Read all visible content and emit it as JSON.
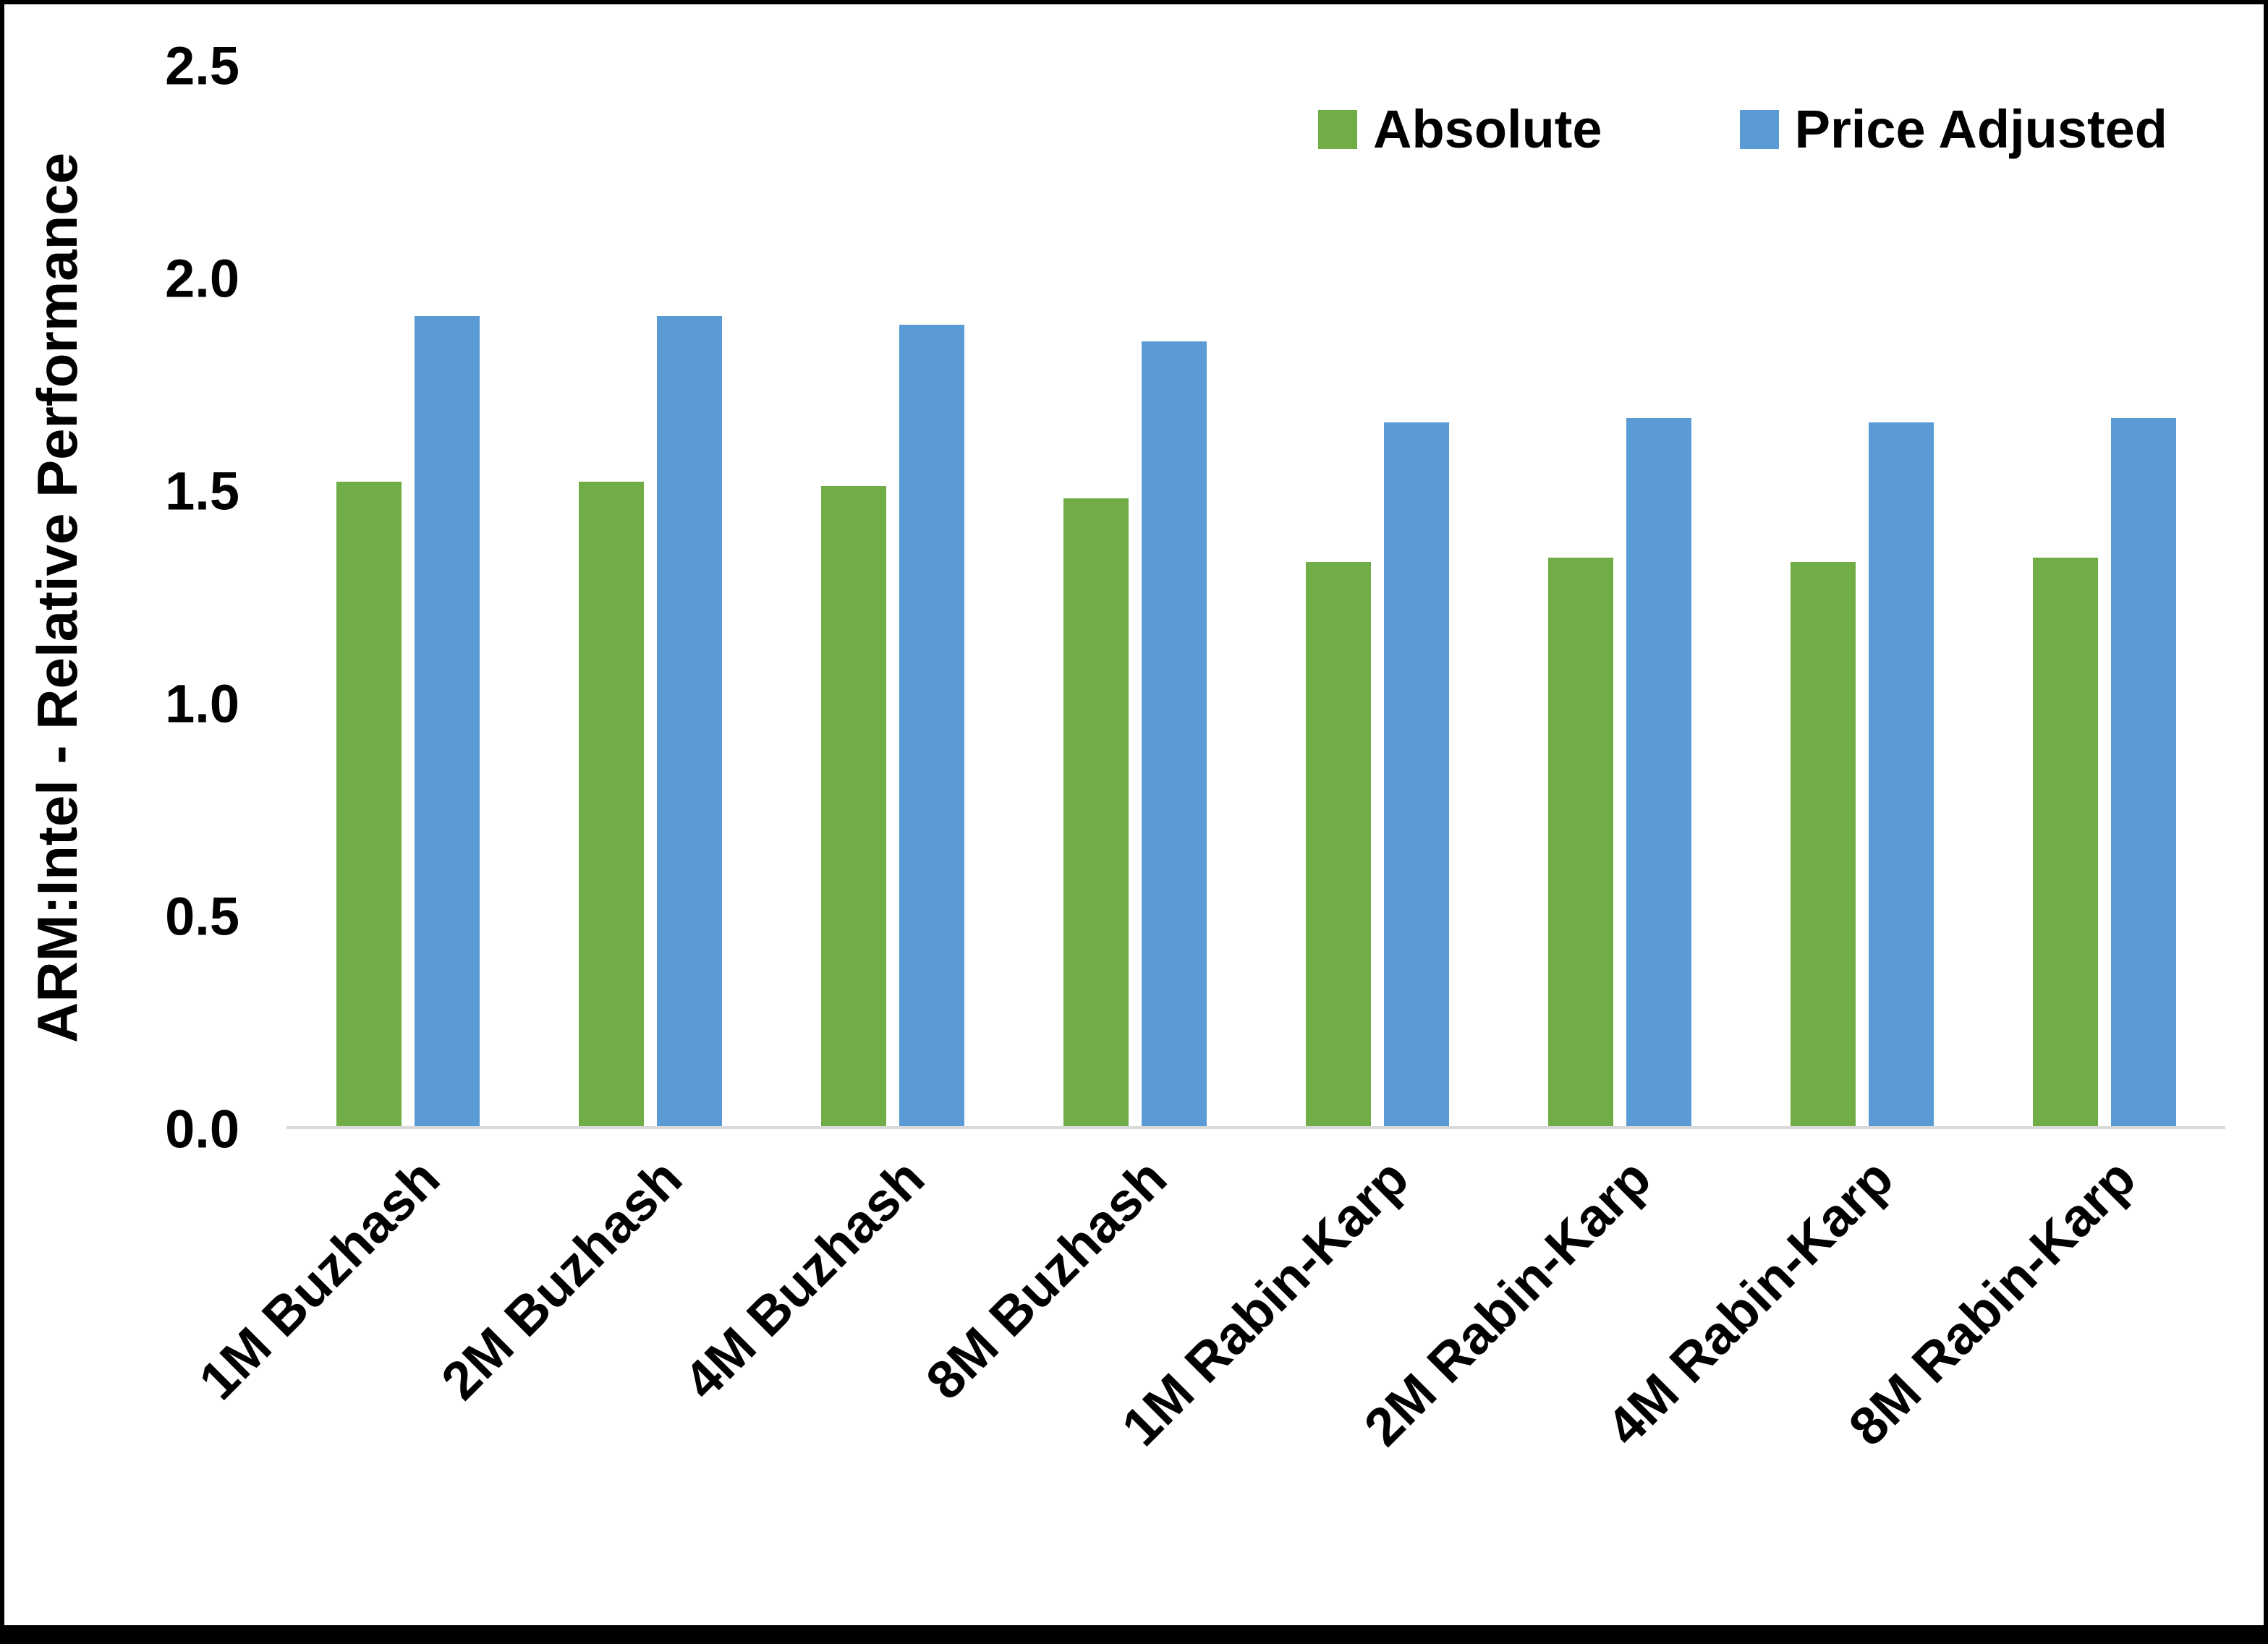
{
  "chart_data": {
    "type": "bar",
    "title": "",
    "xlabel": "",
    "ylabel": "ARM:Intel - Relative Performance",
    "ylim": [
      0,
      2.5
    ],
    "yticks": [
      "0.0",
      "0.5",
      "1.0",
      "1.5",
      "2.0",
      "2.5"
    ],
    "ytick_values": [
      0,
      0.5,
      1.0,
      1.5,
      2.0,
      2.5
    ],
    "grid": false,
    "legend_position": "top-right",
    "categories": [
      "1M Buzhash",
      "2M Buzhash",
      "4M Buzhash",
      "8M Buzhash",
      "1M Rabin-Karp",
      "2M Rabin-Karp",
      "4M Rabin-Karp",
      "8M Rabin-Karp"
    ],
    "series": [
      {
        "name": "Absolute",
        "color": "#70AD47",
        "values": [
          1.52,
          1.52,
          1.51,
          1.48,
          1.33,
          1.34,
          1.33,
          1.34
        ]
      },
      {
        "name": "Price Adjusted",
        "color": "#5B9BD5",
        "values": [
          1.91,
          1.91,
          1.89,
          1.85,
          1.66,
          1.67,
          1.66,
          1.67
        ]
      }
    ]
  }
}
